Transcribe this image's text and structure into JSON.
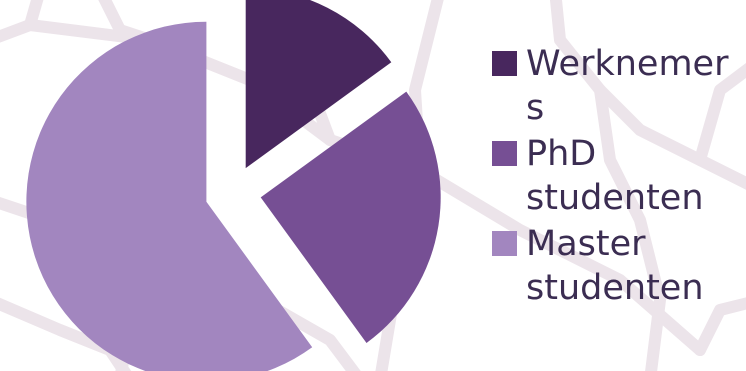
{
  "chart_data": {
    "type": "pie",
    "exploded": true,
    "categories": [
      "Werknemers",
      "PhD studenten",
      "Master studenten"
    ],
    "values": [
      15,
      25,
      60
    ],
    "colors": [
      "#48275e",
      "#764f94",
      "#a286bf"
    ],
    "legend_position": "right"
  },
  "backdrop": {
    "line_color": "#ece4ea",
    "background_color": "#ffffff"
  }
}
